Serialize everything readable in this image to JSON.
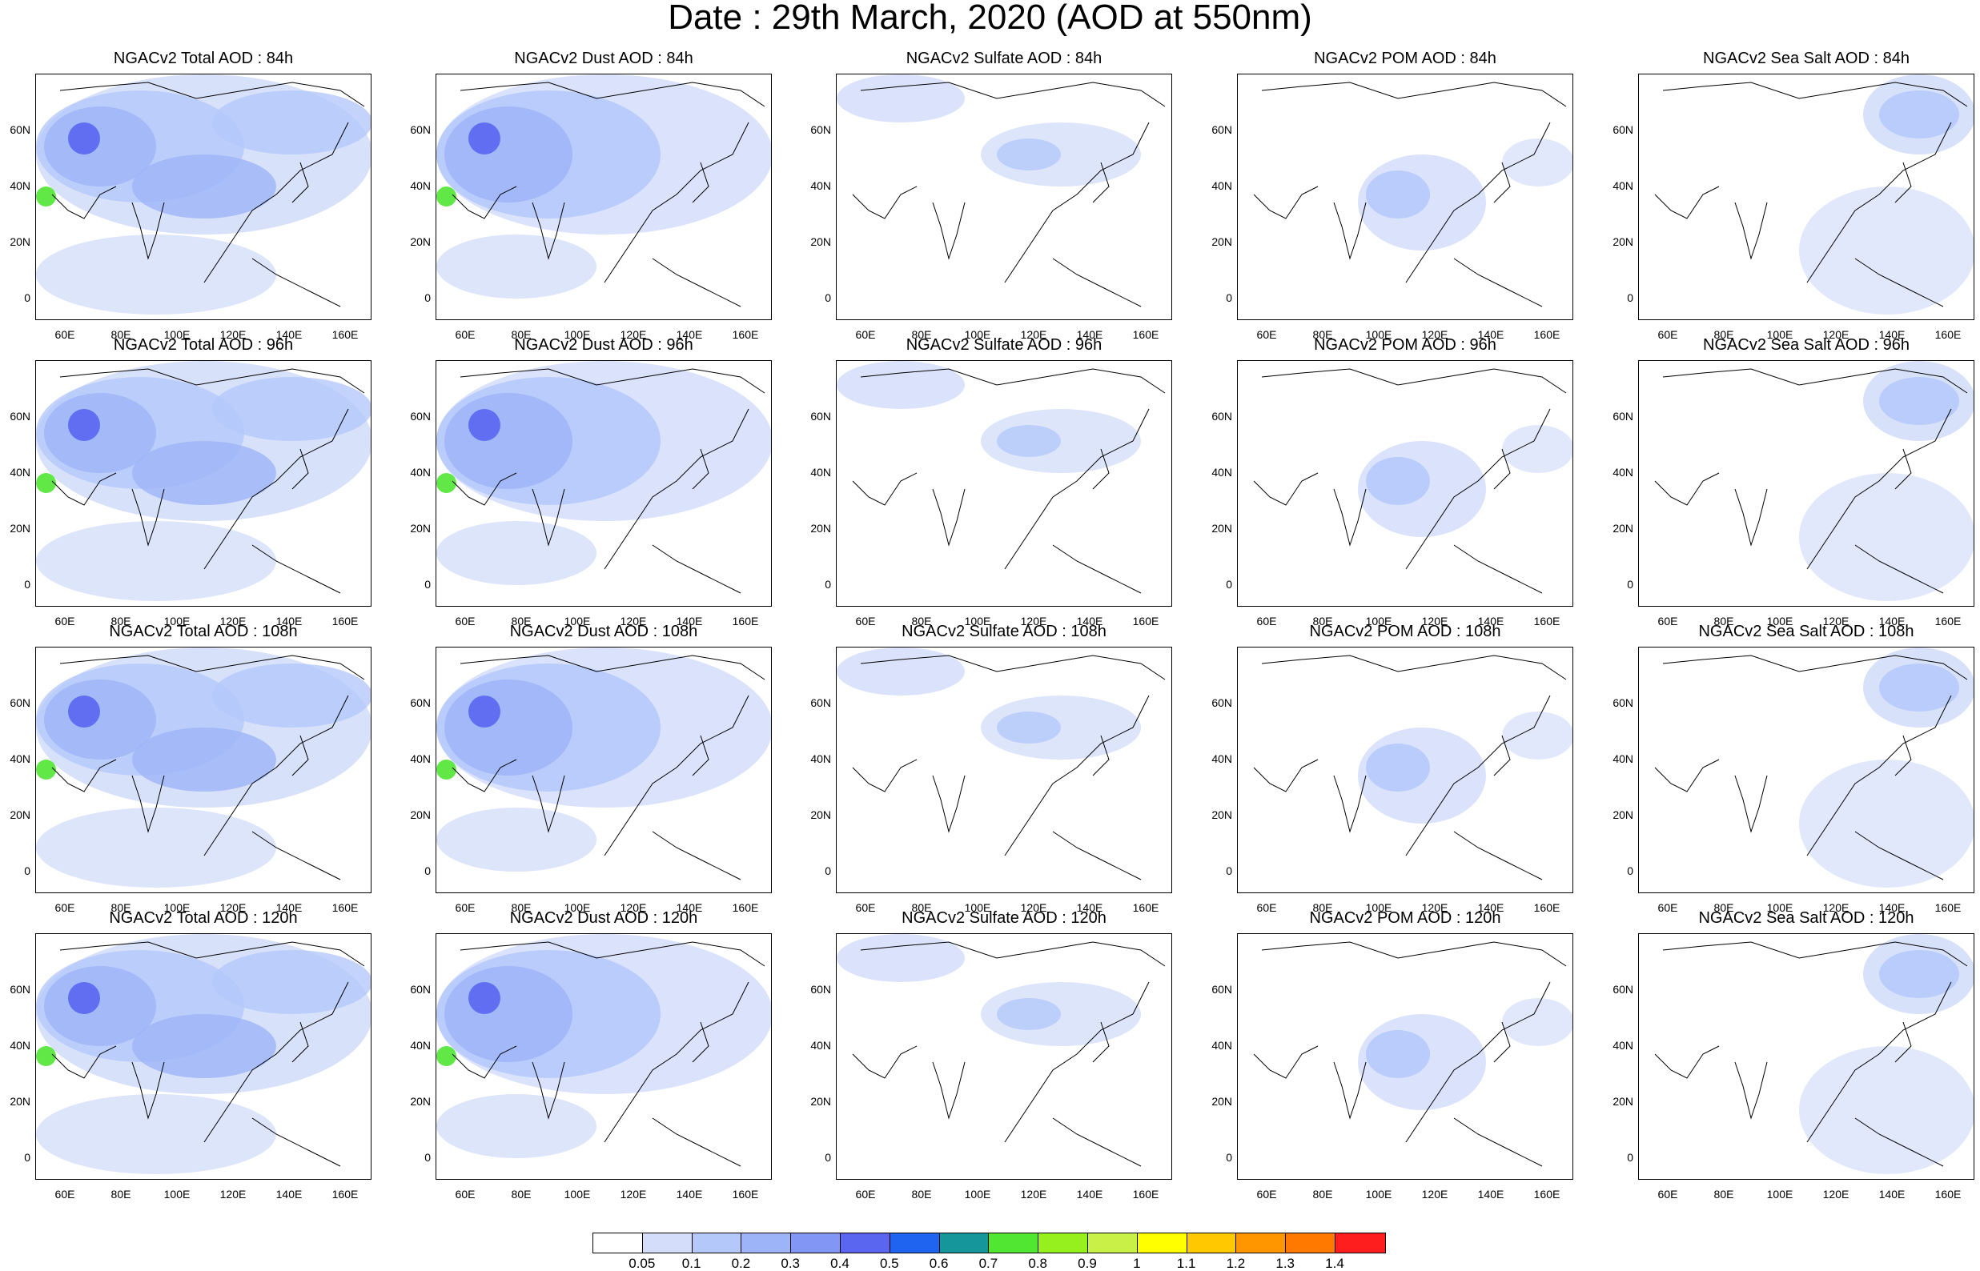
{
  "figure": {
    "title": "Date : 29th March, 2020 (AOD at 550nm)"
  },
  "panel_titles": [
    [
      "NGACv2 Total AOD : 84h",
      "NGACv2 Dust AOD : 84h",
      "NGACv2 Sulfate AOD : 84h",
      "NGACv2 POM AOD : 84h",
      "NGACv2 Sea Salt AOD : 84h"
    ],
    [
      "NGACv2 Total AOD : 96h",
      "NGACv2 Dust AOD : 96h",
      "NGACv2 Sulfate AOD : 96h",
      "NGACv2 POM AOD : 96h",
      "NGACv2 Sea Salt AOD : 96h"
    ],
    [
      "NGACv2 Total AOD : 108h",
      "NGACv2 Dust AOD : 108h",
      "NGACv2 Sulfate AOD : 108h",
      "NGACv2 POM AOD : 108h",
      "NGACv2 Sea Salt AOD : 108h"
    ],
    [
      "NGACv2 Total AOD : 120h",
      "NGACv2 Dust AOD : 120h",
      "NGACv2 Sulfate AOD : 120h",
      "NGACv2 POM AOD : 120h",
      "NGACv2 Sea Salt  AOD : 120h"
    ]
  ],
  "axes": {
    "lat_ticks": [
      "60N",
      "40N",
      "20N",
      "0"
    ],
    "lon_ticks": [
      "60E",
      "80E",
      "100E",
      "120E",
      "140E",
      "160E"
    ]
  },
  "colorbar": {
    "colors": [
      "#ffffff",
      "#d4defa",
      "#b4c8fa",
      "#9db4f8",
      "#8196f5",
      "#5a66f0",
      "#1e64f0",
      "#14969a",
      "#50e632",
      "#96f01e",
      "#c8f046",
      "#ffff00",
      "#ffc800",
      "#ff9600",
      "#ff7800",
      "#ff1e1e"
    ],
    "labels": [
      "0.05",
      "0.1",
      "0.2",
      "0.3",
      "0.4",
      "0.5",
      "0.6",
      "0.7",
      "0.8",
      "0.9",
      "1",
      "1.1",
      "1.2",
      "1.3",
      "1.4"
    ]
  }
}
